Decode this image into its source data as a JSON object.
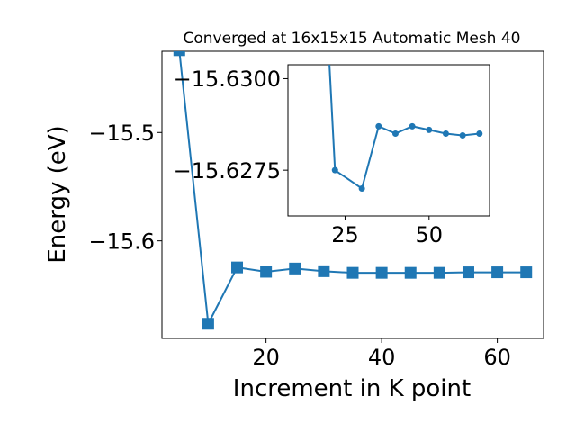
{
  "chart_data": [
    {
      "type": "line",
      "title": "Converged at 16x15x15 Automatic Mesh 40",
      "xlabel": "Increment in K point",
      "ylabel": "Energy (eV)",
      "xlim": [
        2,
        68
      ],
      "ylim": [
        -15.69,
        -15.425
      ],
      "xticks": [
        20,
        40,
        60
      ],
      "xtick_labels": [
        "20",
        "40",
        "60"
      ],
      "yticks": [
        -15.5,
        -15.6
      ],
      "ytick_labels": [
        "−15.5",
        "−15.6"
      ],
      "marker": "square",
      "color": "#1f77b4",
      "grid": false,
      "series": [
        {
          "x": [
            5,
            10,
            15,
            20,
            25,
            30,
            35,
            40,
            45,
            50,
            55,
            60,
            65
          ],
          "values": [
            -15.424,
            -15.6765,
            -15.6245,
            -15.6285,
            -15.6255,
            -15.628,
            -15.6295,
            -15.6295,
            -15.6295,
            -15.6295,
            -15.629,
            -15.629,
            -15.629
          ]
        }
      ]
    },
    {
      "type": "line",
      "title": "",
      "xlabel": "",
      "ylabel": "",
      "xlim": [
        8,
        68
      ],
      "ylim": [
        -15.62625,
        -15.63038
      ],
      "xticks": [
        25,
        50
      ],
      "xtick_labels": [
        "25",
        "50"
      ],
      "yticks": [
        -15.63,
        -15.6275
      ],
      "ytick_labels": [
        "−15.6300",
        "−15.6275"
      ],
      "marker": "circle",
      "color": "#1f77b4",
      "grid": false,
      "series": [
        {
          "x": [
            20,
            22,
            30,
            35,
            40,
            45,
            50,
            55,
            60,
            65
          ],
          "values": [
            -15.631,
            -15.6275,
            -15.627,
            -15.6287,
            -15.6285,
            -15.6287,
            -15.6286,
            -15.6285,
            -15.62845,
            -15.6285
          ]
        }
      ]
    }
  ]
}
